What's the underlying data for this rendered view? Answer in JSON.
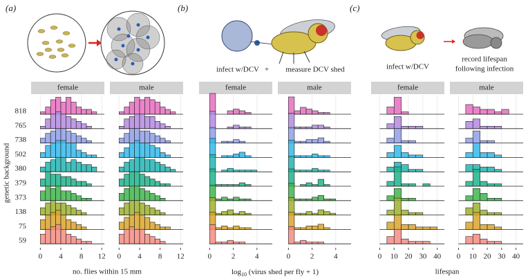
{
  "genetic_backgrounds": [
    "818",
    "765",
    "738",
    "502",
    "380",
    "379",
    "373",
    "138",
    "75",
    "59"
  ],
  "colors": [
    "#e66fc0",
    "#b48ae0",
    "#8f9fe6",
    "#34b9ea",
    "#22b5b2",
    "#1fb48b",
    "#3fb64c",
    "#9db22e",
    "#d9a42b",
    "#f48c82"
  ],
  "ylabel": "genetic background",
  "illustration": {
    "b_infect": "infect w/DCV",
    "b_plus": "+",
    "b_measure": "measure DCV shed",
    "c_infect": "infect w/DCV",
    "c_record_1": "record lifespan",
    "c_record_2": "following infection"
  },
  "chart_data": [
    {
      "type": "ridgeline",
      "panel_label": "(a)",
      "xlabel": "no. flies within 15 mm",
      "xlim": [
        -1.8,
        12.5
      ],
      "xticks": [
        0,
        4,
        8,
        12
      ],
      "bins": [
        0,
        1,
        2,
        3,
        4,
        5,
        6,
        7,
        8,
        9,
        10,
        11,
        12
      ],
      "facets": [
        {
          "name": "female",
          "values": [
            [
              1,
              3,
              6,
              7,
              5,
              7,
              5,
              3,
              2,
              2,
              1,
              0
            ],
            [
              1,
              4,
              6,
              7,
              6,
              5,
              4,
              3,
              2,
              1,
              0,
              0
            ],
            [
              2,
              4,
              5,
              6,
              6,
              5,
              4,
              3,
              2,
              1,
              0,
              0
            ],
            [
              2,
              5,
              6,
              7,
              7,
              6,
              6,
              3,
              2,
              1,
              1,
              0
            ],
            [
              2,
              4,
              5,
              6,
              6,
              4,
              5,
              4,
              3,
              3,
              2,
              0
            ],
            [
              3,
              6,
              5,
              5,
              4,
              4,
              3,
              2,
              2,
              1,
              0,
              0
            ],
            [
              4,
              6,
              5,
              6,
              4,
              4,
              3,
              2,
              1,
              1,
              0,
              0
            ],
            [
              3,
              5,
              6,
              5,
              5,
              4,
              3,
              2,
              1,
              0,
              0,
              0
            ],
            [
              4,
              6,
              7,
              8,
              6,
              4,
              3,
              2,
              1,
              0,
              0,
              0
            ],
            [
              4,
              6,
              7,
              8,
              6,
              4,
              3,
              2,
              1,
              1,
              0,
              0
            ]
          ]
        },
        {
          "name": "male",
          "values": [
            [
              1,
              3,
              5,
              7,
              6,
              7,
              6,
              5,
              3,
              2,
              1,
              0
            ],
            [
              1,
              4,
              5,
              6,
              6,
              5,
              5,
              3,
              2,
              1,
              0,
              0
            ],
            [
              2,
              4,
              6,
              6,
              5,
              5,
              4,
              3,
              2,
              1,
              0,
              0
            ],
            [
              2,
              4,
              6,
              7,
              6,
              6,
              5,
              4,
              2,
              1,
              0,
              0
            ],
            [
              2,
              4,
              5,
              6,
              6,
              5,
              5,
              4,
              3,
              2,
              1,
              0
            ],
            [
              3,
              5,
              6,
              6,
              5,
              4,
              3,
              2,
              1,
              1,
              0,
              0
            ],
            [
              3,
              5,
              6,
              6,
              5,
              4,
              3,
              2,
              1,
              0,
              0,
              0
            ],
            [
              3,
              5,
              6,
              6,
              5,
              4,
              3,
              2,
              1,
              0,
              0,
              0
            ],
            [
              3,
              5,
              6,
              7,
              6,
              5,
              3,
              2,
              1,
              1,
              0,
              0
            ],
            [
              4,
              6,
              7,
              6,
              6,
              4,
              3,
              2,
              1,
              0,
              0,
              0
            ]
          ]
        }
      ]
    },
    {
      "type": "ridgeline",
      "panel_label": "(b)",
      "xlabel_base": "log",
      "xlabel_sub": "10",
      "xlabel_rest": " (virus shed per fly + 1)",
      "xlim": [
        -0.9,
        5.3
      ],
      "xticks": [
        0,
        2,
        4
      ],
      "bins": [
        0,
        0.5,
        1,
        1.5,
        2,
        2.5,
        3,
        3.5,
        4,
        4.5,
        5
      ],
      "facets": [
        {
          "name": "female",
          "values": [
            [
              12,
              0,
              0,
              2,
              3,
              2,
              1,
              0,
              0,
              0
            ],
            [
              10,
              0,
              0,
              1,
              2,
              1,
              1,
              0,
              0,
              0
            ],
            [
              9,
              0,
              1,
              1,
              2,
              1,
              0,
              0,
              0,
              0
            ],
            [
              11,
              0,
              1,
              1,
              2,
              3,
              1,
              0,
              0,
              0
            ],
            [
              10,
              0,
              1,
              2,
              1,
              1,
              1,
              1,
              0,
              0
            ],
            [
              10,
              1,
              1,
              1,
              1,
              2,
              1,
              0,
              0,
              0
            ],
            [
              9,
              1,
              2,
              1,
              2,
              1,
              1,
              0,
              0,
              0
            ],
            [
              10,
              1,
              2,
              3,
              1,
              2,
              1,
              0,
              0,
              0
            ],
            [
              10,
              1,
              2,
              1,
              2,
              1,
              1,
              0,
              0,
              0
            ],
            [
              11,
              1,
              1,
              2,
              1,
              1,
              0,
              0,
              0,
              0
            ]
          ]
        },
        {
          "name": "male",
          "values": [
            [
              10,
              2,
              4,
              3,
              2,
              1,
              1,
              0,
              0,
              0
            ],
            [
              9,
              1,
              1,
              1,
              2,
              2,
              1,
              0,
              0,
              0
            ],
            [
              9,
              1,
              1,
              2,
              2,
              3,
              1,
              0,
              0,
              0
            ],
            [
              10,
              1,
              1,
              1,
              2,
              1,
              1,
              0,
              0,
              0
            ],
            [
              9,
              1,
              1,
              1,
              2,
              1,
              1,
              0,
              0,
              0
            ],
            [
              10,
              0,
              1,
              2,
              1,
              4,
              1,
              0,
              0,
              0
            ],
            [
              10,
              1,
              1,
              1,
              2,
              3,
              1,
              1,
              0,
              0
            ],
            [
              10,
              1,
              1,
              2,
              1,
              3,
              2,
              1,
              0,
              0
            ],
            [
              10,
              1,
              1,
              2,
              2,
              3,
              1,
              0,
              0,
              0
            ],
            [
              10,
              1,
              2,
              1,
              1,
              1,
              0,
              0,
              0,
              0
            ]
          ]
        }
      ]
    },
    {
      "type": "ridgeline",
      "panel_label": "(c)",
      "xlabel": "lifespan",
      "xlim": [
        -6,
        45
      ],
      "xticks": [
        0,
        10,
        20,
        30,
        40
      ],
      "bins": [
        0,
        5,
        10,
        15,
        20,
        25,
        30,
        35,
        40,
        45
      ],
      "facets": [
        {
          "name": "female",
          "values": [
            [
              0,
              3,
              7,
              1,
              0,
              0,
              0,
              0,
              0
            ],
            [
              0,
              2,
              5,
              1,
              1,
              1,
              0,
              0,
              0
            ],
            [
              0,
              2,
              6,
              1,
              1,
              0,
              0,
              0,
              0
            ],
            [
              0,
              2,
              5,
              2,
              1,
              1,
              0,
              0,
              0
            ],
            [
              0,
              2,
              4,
              3,
              1,
              1,
              0,
              0,
              0
            ],
            [
              0,
              2,
              8,
              1,
              1,
              0,
              1,
              0,
              0
            ],
            [
              0,
              2,
              5,
              1,
              1,
              0,
              0,
              0,
              0
            ],
            [
              0,
              2,
              7,
              2,
              1,
              1,
              0,
              0,
              0
            ],
            [
              0,
              3,
              6,
              2,
              2,
              1,
              1,
              1,
              0
            ],
            [
              0,
              3,
              6,
              2,
              1,
              1,
              1,
              0,
              0
            ]
          ]
        },
        {
          "name": "male",
          "values": [
            [
              0,
              4,
              3,
              2,
              2,
              1,
              2,
              0,
              0
            ],
            [
              0,
              3,
              4,
              1,
              1,
              1,
              0,
              0,
              0
            ],
            [
              0,
              2,
              5,
              1,
              1,
              0,
              0,
              0,
              0
            ],
            [
              0,
              2,
              6,
              2,
              2,
              1,
              0,
              0,
              0
            ],
            [
              0,
              3,
              3,
              2,
              2,
              1,
              0,
              0,
              0
            ],
            [
              0,
              2,
              7,
              2,
              1,
              1,
              0,
              0,
              0
            ],
            [
              0,
              2,
              5,
              3,
              1,
              1,
              0,
              0,
              0
            ],
            [
              0,
              3,
              5,
              2,
              1,
              1,
              0,
              0,
              0
            ],
            [
              0,
              3,
              7,
              2,
              2,
              1,
              0,
              0,
              0
            ],
            [
              0,
              3,
              4,
              2,
              1,
              1,
              0,
              0,
              0
            ]
          ]
        }
      ]
    }
  ]
}
